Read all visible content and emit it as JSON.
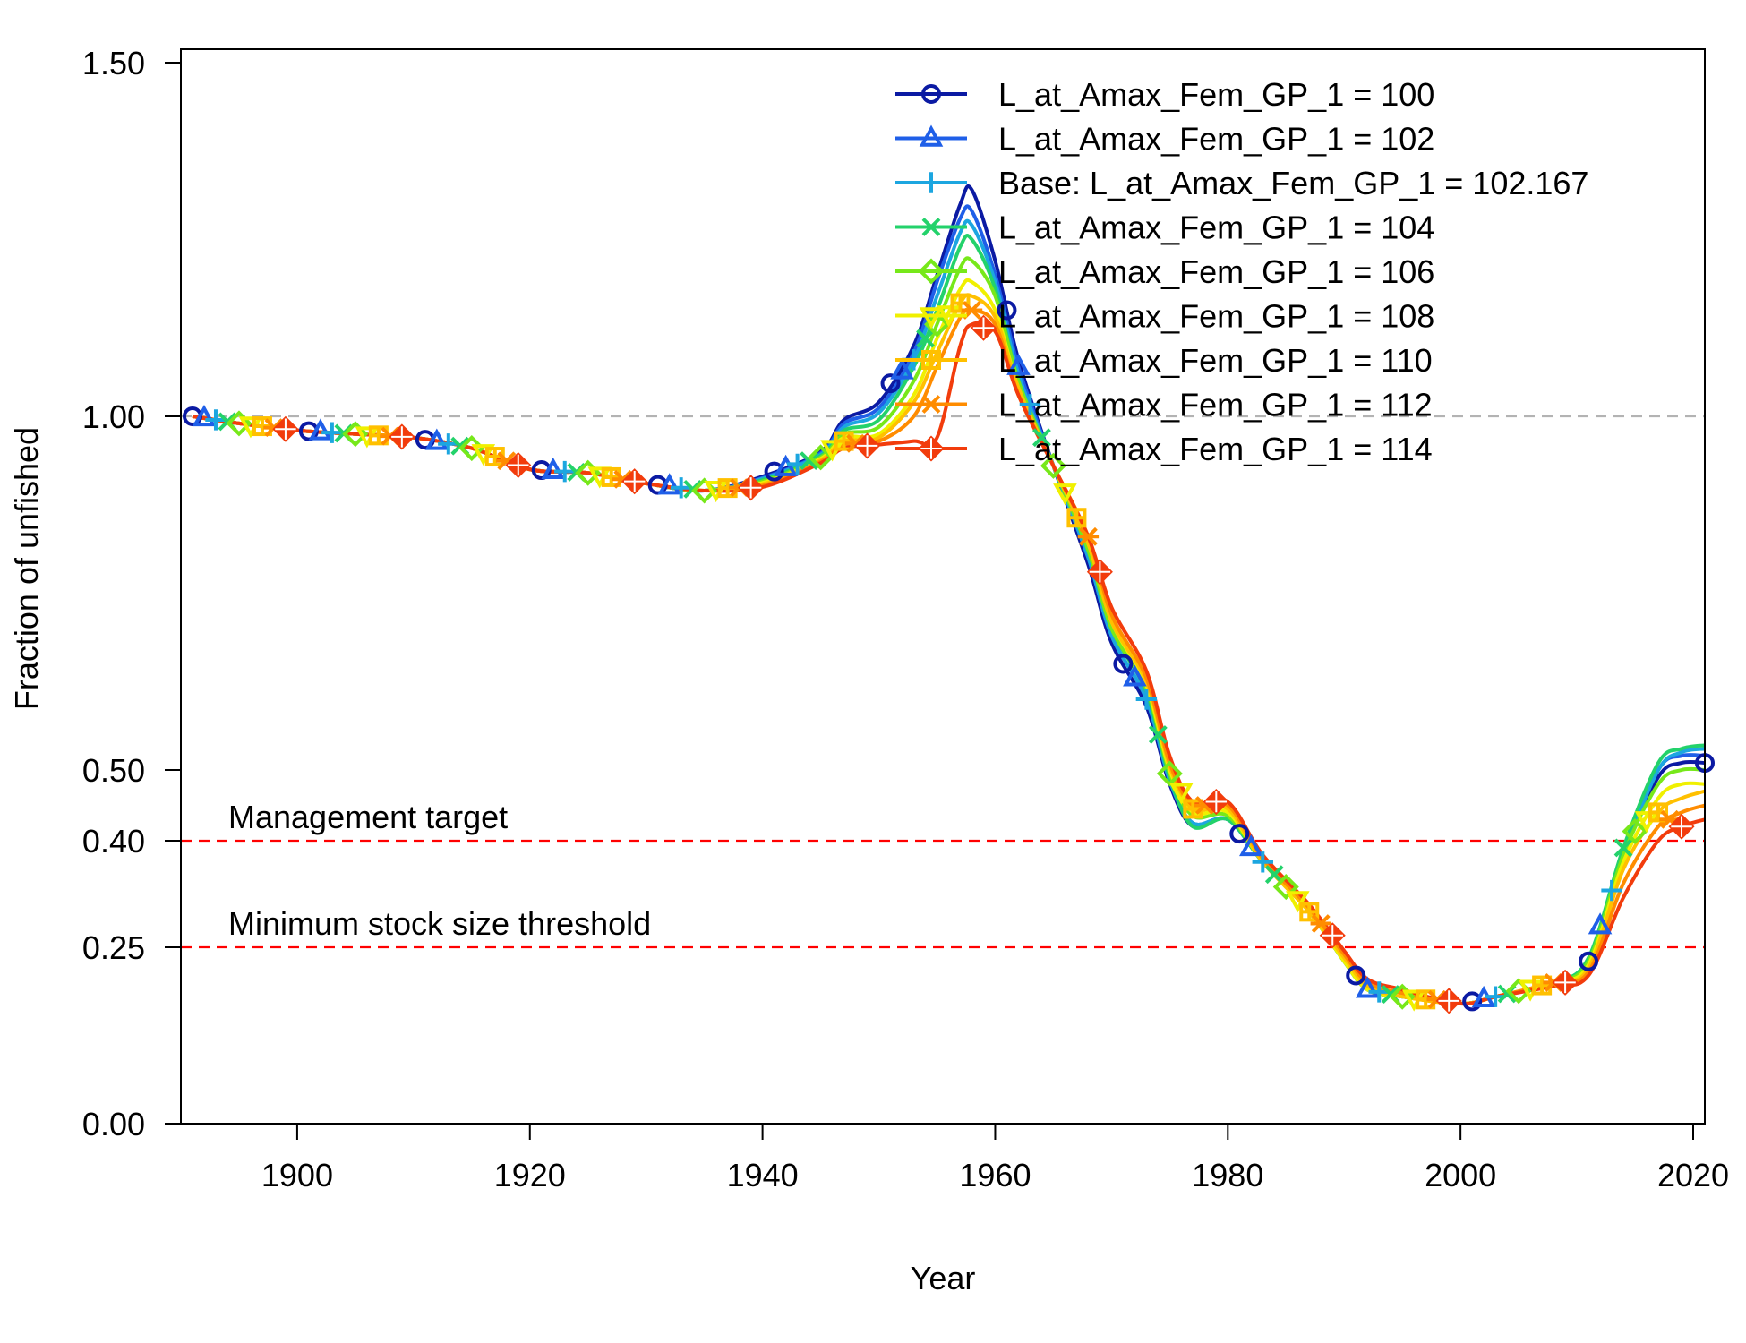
{
  "chart_data": {
    "type": "line",
    "xlabel": "Year",
    "ylabel": "Fraction of unfished",
    "xlim": [
      1890,
      2021
    ],
    "ylim": [
      0,
      1.5
    ],
    "x_ticks": [
      1900,
      1920,
      1940,
      1960,
      1980,
      2000,
      2020
    ],
    "y_ticks": [
      0.0,
      0.25,
      0.4,
      0.5,
      1.0,
      1.5
    ],
    "y_tick_labels": [
      "0.00",
      "0.25",
      "0.40",
      "0.50",
      "1.00",
      "1.50"
    ],
    "legend_position": "top-right",
    "reference_lines": [
      {
        "y": 1.0,
        "color": "#b3b3b3",
        "style": "dashed",
        "label": ""
      },
      {
        "y": 0.4,
        "color": "#ff0000",
        "style": "dashed",
        "label": "Management target"
      },
      {
        "y": 0.25,
        "color": "#ff0000",
        "style": "dashed",
        "label": "Minimum stock size threshold"
      }
    ],
    "x": [
      1891,
      1895,
      1900,
      1905,
      1910,
      1915,
      1920,
      1925,
      1930,
      1935,
      1940,
      1945,
      1947,
      1950,
      1953,
      1955,
      1957,
      1958,
      1960,
      1962,
      1965,
      1968,
      1970,
      1973,
      1975,
      1977,
      1980,
      1983,
      1987,
      1990,
      1992,
      1995,
      2000,
      2003,
      2008,
      2011,
      2014,
      2017,
      2019,
      2021
    ],
    "series": [
      {
        "name": "L_at_Amax_Fem_GP_1 = 100",
        "color": "#0b1aa3",
        "marker": "circle",
        "values": [
          1.0,
          0.99,
          0.98,
          0.975,
          0.97,
          0.955,
          0.925,
          0.92,
          0.905,
          0.895,
          0.915,
          0.95,
          0.995,
          1.02,
          1.1,
          1.2,
          1.3,
          1.32,
          1.22,
          1.08,
          0.93,
          0.79,
          0.68,
          0.59,
          0.48,
          0.42,
          0.43,
          0.37,
          0.3,
          0.23,
          0.19,
          0.18,
          0.17,
          0.18,
          0.2,
          0.23,
          0.38,
          0.49,
          0.51,
          0.51
        ]
      },
      {
        "name": "L_at_Amax_Fem_GP_1 = 102",
        "color": "#1f5fe8",
        "marker": "triangle",
        "values": [
          1.0,
          0.99,
          0.98,
          0.975,
          0.97,
          0.955,
          0.925,
          0.92,
          0.905,
          0.895,
          0.913,
          0.948,
          0.99,
          1.012,
          1.09,
          1.19,
          1.28,
          1.29,
          1.2,
          1.07,
          0.93,
          0.8,
          0.69,
          0.6,
          0.485,
          0.425,
          0.43,
          0.37,
          0.3,
          0.23,
          0.19,
          0.18,
          0.17,
          0.18,
          0.2,
          0.23,
          0.38,
          0.5,
          0.52,
          0.52
        ]
      },
      {
        "name": "Base: L_at_Amax_Fem_GP_1 = 102.167",
        "color": "#1ca6e0",
        "marker": "plus",
        "values": [
          1.0,
          0.99,
          0.98,
          0.975,
          0.97,
          0.955,
          0.925,
          0.92,
          0.905,
          0.895,
          0.912,
          0.946,
          0.985,
          1.005,
          1.08,
          1.17,
          1.26,
          1.27,
          1.19,
          1.06,
          0.93,
          0.8,
          0.69,
          0.6,
          0.485,
          0.425,
          0.43,
          0.37,
          0.3,
          0.23,
          0.19,
          0.18,
          0.17,
          0.18,
          0.2,
          0.23,
          0.38,
          0.5,
          0.525,
          0.53
        ]
      },
      {
        "name": "L_at_Amax_Fem_GP_1 = 104",
        "color": "#23d26b",
        "marker": "x",
        "values": [
          1.0,
          0.99,
          0.98,
          0.975,
          0.97,
          0.955,
          0.925,
          0.92,
          0.905,
          0.895,
          0.91,
          0.944,
          0.98,
          0.995,
          1.07,
          1.15,
          1.24,
          1.25,
          1.18,
          1.05,
          0.93,
          0.81,
          0.7,
          0.61,
          0.49,
          0.42,
          0.43,
          0.37,
          0.3,
          0.23,
          0.19,
          0.18,
          0.17,
          0.18,
          0.2,
          0.235,
          0.39,
          0.51,
          0.53,
          0.535
        ]
      },
      {
        "name": "L_at_Amax_Fem_GP_1 = 106",
        "color": "#77e81a",
        "marker": "diamond",
        "values": [
          1.0,
          0.99,
          0.98,
          0.975,
          0.97,
          0.955,
          0.925,
          0.92,
          0.905,
          0.895,
          0.908,
          0.942,
          0.975,
          0.985,
          1.05,
          1.13,
          1.21,
          1.22,
          1.17,
          1.05,
          0.93,
          0.81,
          0.7,
          0.615,
          0.495,
          0.435,
          0.435,
          0.37,
          0.3,
          0.23,
          0.19,
          0.18,
          0.17,
          0.18,
          0.2,
          0.23,
          0.38,
          0.48,
          0.5,
          0.5
        ]
      },
      {
        "name": "L_at_Amax_Fem_GP_1 = 108",
        "color": "#f0f000",
        "marker": "triangle-down",
        "values": [
          1.0,
          0.99,
          0.98,
          0.975,
          0.97,
          0.955,
          0.925,
          0.92,
          0.905,
          0.895,
          0.906,
          0.94,
          0.97,
          0.975,
          1.03,
          1.11,
          1.18,
          1.19,
          1.15,
          1.04,
          0.93,
          0.82,
          0.71,
          0.62,
          0.5,
          0.44,
          0.44,
          0.37,
          0.3,
          0.23,
          0.19,
          0.18,
          0.17,
          0.18,
          0.2,
          0.225,
          0.37,
          0.46,
          0.48,
          0.48
        ]
      },
      {
        "name": "L_at_Amax_Fem_GP_1 = 110",
        "color": "#ffc000",
        "marker": "boxplus",
        "values": [
          1.0,
          0.99,
          0.98,
          0.975,
          0.97,
          0.955,
          0.925,
          0.92,
          0.905,
          0.895,
          0.904,
          0.938,
          0.965,
          0.97,
          1.02,
          1.09,
          1.16,
          1.17,
          1.14,
          1.04,
          0.93,
          0.82,
          0.71,
          0.625,
          0.505,
          0.445,
          0.445,
          0.37,
          0.3,
          0.235,
          0.195,
          0.18,
          0.17,
          0.18,
          0.2,
          0.22,
          0.36,
          0.44,
          0.46,
          0.47
        ]
      },
      {
        "name": "L_at_Amax_Fem_GP_1 = 112",
        "color": "#ff8c00",
        "marker": "asterisk",
        "values": [
          1.0,
          0.99,
          0.98,
          0.975,
          0.97,
          0.955,
          0.925,
          0.92,
          0.905,
          0.895,
          0.902,
          0.936,
          0.96,
          0.965,
          1.0,
          1.07,
          1.14,
          1.15,
          1.13,
          1.03,
          0.93,
          0.83,
          0.72,
          0.63,
          0.51,
          0.45,
          0.45,
          0.375,
          0.305,
          0.24,
          0.2,
          0.185,
          0.17,
          0.18,
          0.2,
          0.215,
          0.34,
          0.42,
          0.44,
          0.45
        ]
      },
      {
        "name": "L_at_Amax_Fem_GP_1 = 114",
        "color": "#f23c0c",
        "marker": "diamond-plus",
        "values": [
          1.0,
          0.99,
          0.98,
          0.975,
          0.97,
          0.955,
          0.925,
          0.92,
          0.905,
          0.895,
          0.9,
          0.934,
          0.955,
          0.96,
          0.965,
          0.97,
          1.1,
          1.13,
          1.12,
          1.03,
          0.93,
          0.83,
          0.73,
          0.64,
          0.52,
          0.455,
          0.455,
          0.38,
          0.31,
          0.245,
          0.205,
          0.19,
          0.17,
          0.18,
          0.195,
          0.21,
          0.32,
          0.4,
          0.42,
          0.43
        ]
      }
    ]
  }
}
